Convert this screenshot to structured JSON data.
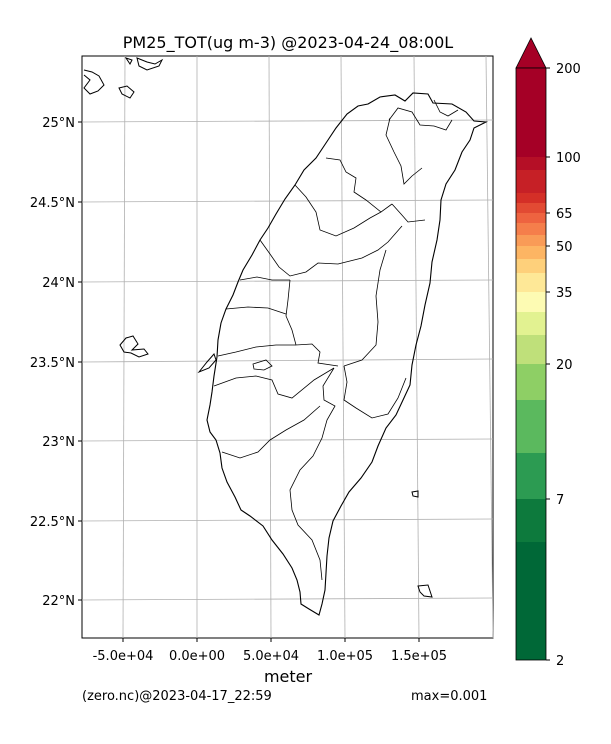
{
  "title": "PM25_TOT(ug m-3) @2023-04-24_08:00L",
  "xlabel": "meter",
  "x_ticks": [
    "-5.0e+04",
    "0.0e+00",
    "5.0e+04",
    "1.0e+05",
    "1.5e+05"
  ],
  "y_ticks": [
    "25°N",
    "24.5°N",
    "24°N",
    "23.5°N",
    "23°N",
    "22.5°N",
    "22°N"
  ],
  "footer": {
    "source": "(zero.nc)@2023-04-17_22:59",
    "max": "max=0.001"
  },
  "colorbar": {
    "tick_labels": [
      "200",
      "100",
      "65",
      "50",
      "35",
      "20",
      "7",
      "2"
    ],
    "colors": [
      "#a50026",
      "#b50f26",
      "#c62026",
      "#d42f27",
      "#e24a33",
      "#ee6340",
      "#f57e4b",
      "#f99b57",
      "#fdb563",
      "#fed07b",
      "#fee897",
      "#fdfbb3",
      "#e2f291",
      "#bfe07a",
      "#8ecf65",
      "#5bb95e",
      "#2c9b52",
      "#0d7a3d",
      "#006837"
    ]
  },
  "chart_data": {
    "type": "map",
    "variable": "PM25_TOT",
    "units": "ug m-3",
    "time": "2023-04-24_08:00L",
    "max": 0.001,
    "colorbar_levels": [
      2,
      7,
      20,
      35,
      50,
      65,
      100,
      200
    ]
  }
}
